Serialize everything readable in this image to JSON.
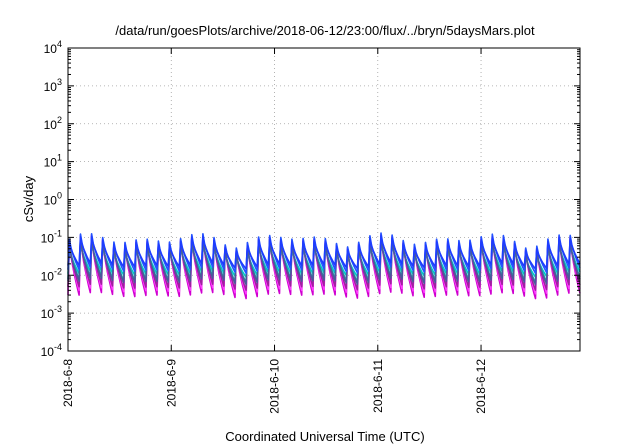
{
  "chart_data": {
    "type": "line",
    "title": "/data/run/goesPlots/archive/2018-06-12/23:00/flux/../bryn/5daysMars.plot",
    "xlabel": "Coordinated Universal Time (UTC)",
    "ylabel": "cSv/day",
    "y_scale": "log",
    "ylim": [
      0.0001,
      10000
    ],
    "xlim": [
      "2018-06-08T00:00",
      "2018-06-12T23:00"
    ],
    "grid": true,
    "y_ticks": [
      {
        "base": "10",
        "exp": "-4",
        "value": 0.0001
      },
      {
        "base": "10",
        "exp": "-3",
        "value": 0.001
      },
      {
        "base": "10",
        "exp": "-2",
        "value": 0.01
      },
      {
        "base": "10",
        "exp": "-1",
        "value": 0.1
      },
      {
        "base": "10",
        "exp": "0",
        "value": 1
      },
      {
        "base": "10",
        "exp": "1",
        "value": 10
      },
      {
        "base": "10",
        "exp": "2",
        "value": 100
      },
      {
        "base": "10",
        "exp": "3",
        "value": 1000
      },
      {
        "base": "10",
        "exp": "4",
        "value": 10000
      }
    ],
    "x_ticks": [
      {
        "label": "2018-6-8",
        "value": "2018-06-08T00:00"
      },
      {
        "label": "2018-6-9",
        "value": "2018-06-09T00:00"
      },
      {
        "label": "2018-6-10",
        "value": "2018-06-10T00:00"
      },
      {
        "label": "2018-6-11",
        "value": "2018-06-11T00:00"
      },
      {
        "label": "2018-6-12",
        "value": "2018-06-12T00:00"
      }
    ],
    "series_pattern": {
      "sawtooth_cycles": 46,
      "peak_range": [
        0.05,
        0.13
      ],
      "trough_range": [
        0.003,
        0.02
      ]
    },
    "series": [
      {
        "color": "#d000d0",
        "peak_factor": 0.95,
        "trough": 0.003
      },
      {
        "color": "#ff40ff",
        "peak_factor": 0.9,
        "trough": 0.004
      },
      {
        "color": "#a020a0",
        "peak_factor": 0.8,
        "trough": 0.005
      },
      {
        "color": "#20b2aa",
        "peak_factor": 0.7,
        "trough": 0.008
      },
      {
        "color": "#00c8c8",
        "peak_factor": 0.6,
        "trough": 0.011
      },
      {
        "color": "#4a5a9a",
        "peak_factor": 0.75,
        "trough": 0.007
      },
      {
        "color": "#2255ff",
        "peak_factor": 1.0,
        "trough": 0.014
      },
      {
        "color": "#1e3cff",
        "peak_factor": 0.85,
        "trough": 0.018
      }
    ]
  }
}
